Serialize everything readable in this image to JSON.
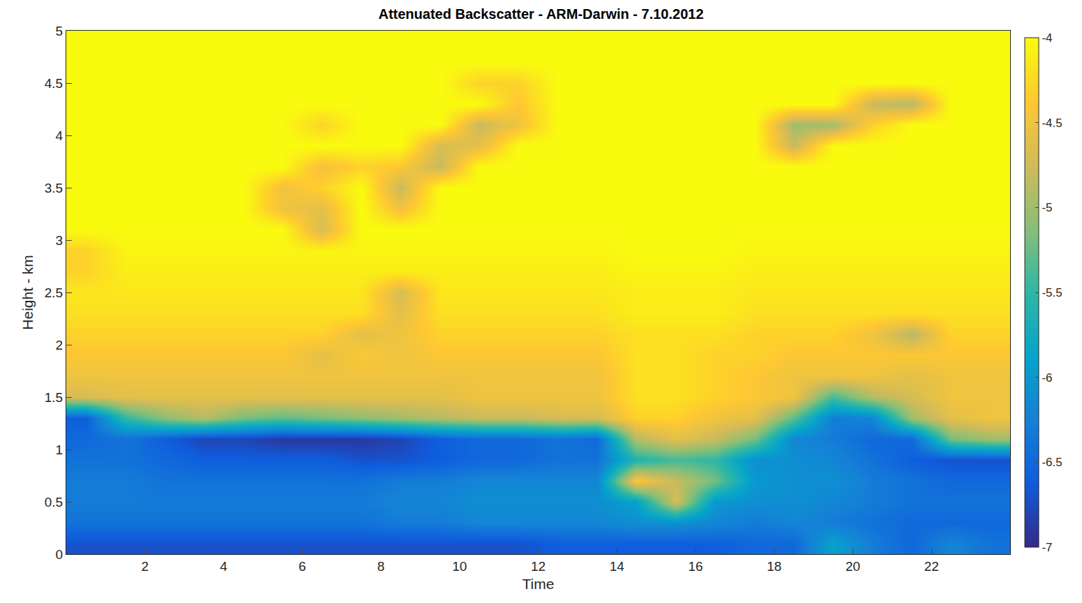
{
  "chart_data": {
    "type": "heatmap",
    "title": "Attenuated Backscatter - ARM-Darwin - 7.10.2012",
    "x_label": "Time",
    "y_label": "Height - km",
    "xlim": [
      0,
      24
    ],
    "xticks": [
      2,
      4,
      6,
      8,
      10,
      12,
      14,
      16,
      18,
      20,
      22
    ],
    "ylim": [
      0,
      5
    ],
    "yticks": [
      0,
      0.5,
      1,
      1.5,
      2,
      2.5,
      3,
      3.5,
      4,
      4.5,
      5
    ],
    "color_range": [
      -7,
      -4
    ],
    "color_ticks": [
      -7,
      -6.5,
      -6,
      -5.5,
      -5,
      -4.5,
      -4
    ],
    "x": [
      0.5,
      1.5,
      2.5,
      3.5,
      4.5,
      5.5,
      6.5,
      7.5,
      8.5,
      9.5,
      10.5,
      11.5,
      12.5,
      13.5,
      14.5,
      15.5,
      16.5,
      17.5,
      18.5,
      19.5,
      20.5,
      21.5,
      22.5,
      23.5
    ],
    "y": [
      0.1,
      0.3,
      0.5,
      0.7,
      0.9,
      1.1,
      1.3,
      1.5,
      1.7,
      1.9,
      2.1,
      2.3,
      2.5,
      2.7,
      2.9,
      3.1,
      3.3,
      3.5,
      3.7,
      3.9,
      4.1,
      4.3,
      4.5,
      4.7,
      4.9
    ],
    "cells": [
      [
        -6.7,
        -6.7,
        -6.7,
        -6.7,
        -6.7,
        -6.7,
        -6.7,
        -6.7,
        -6.7,
        -6.7,
        -6.7,
        -6.7,
        -6.6,
        -6.6,
        -6.6,
        -6.6,
        -6.6,
        -6.5,
        -6.5,
        -5.9,
        -6.3,
        -6.5,
        -6.2,
        -6.4
      ],
      [
        -6.4,
        -6.4,
        -6.4,
        -6.4,
        -6.4,
        -6.4,
        -6.4,
        -6.4,
        -6.3,
        -6.3,
        -6.2,
        -6.2,
        -6.2,
        -6.2,
        -6.1,
        -6.1,
        -6.2,
        -6.3,
        -6.2,
        -6.3,
        -6.4,
        -6.5,
        -6.5,
        -6.5
      ],
      [
        -6.3,
        -6.3,
        -6.3,
        -6.3,
        -6.3,
        -6.3,
        -6.3,
        -6.3,
        -6.2,
        -6.2,
        -6.1,
        -6.1,
        -6.1,
        -6.1,
        -5.9,
        -4.7,
        -6.0,
        -6.1,
        -6.1,
        -6.2,
        -6.3,
        -6.4,
        -6.4,
        -6.4
      ],
      [
        -6.3,
        -6.3,
        -6.4,
        -6.4,
        -6.4,
        -6.4,
        -6.4,
        -6.4,
        -6.3,
        -6.3,
        -6.2,
        -6.2,
        -6.2,
        -6.2,
        -4.4,
        -4.8,
        -5.2,
        -6.0,
        -6.1,
        -6.1,
        -6.3,
        -6.4,
        -6.5,
        -6.5
      ],
      [
        -6.4,
        -6.4,
        -6.5,
        -6.6,
        -6.6,
        -6.6,
        -6.6,
        -6.7,
        -6.7,
        -6.6,
        -6.5,
        -6.5,
        -6.4,
        -6.4,
        -5.6,
        -5.4,
        -5.5,
        -6.1,
        -6.1,
        -6.2,
        -6.4,
        -6.6,
        -6.7,
        -6.7
      ],
      [
        -6.5,
        -6.4,
        -6.6,
        -6.8,
        -6.8,
        -6.9,
        -6.9,
        -6.9,
        -6.8,
        -6.6,
        -6.5,
        -6.5,
        -6.4,
        -6.5,
        -4.9,
        -4.6,
        -4.8,
        -5.2,
        -6.2,
        -6.3,
        -6.5,
        -6.5,
        -5.2,
        -5.0
      ],
      [
        -6.6,
        -5.5,
        -5.1,
        -4.9,
        -5.2,
        -5.3,
        -5.2,
        -5.1,
        -5.0,
        -4.9,
        -4.8,
        -4.8,
        -4.7,
        -4.7,
        -4.3,
        -4.3,
        -4.5,
        -4.6,
        -5.3,
        -6.3,
        -6.2,
        -5.0,
        -4.6,
        -4.5
      ],
      [
        -4.7,
        -4.6,
        -4.6,
        -4.6,
        -4.6,
        -4.6,
        -4.6,
        -4.6,
        -4.6,
        -4.6,
        -4.5,
        -4.5,
        -4.5,
        -4.5,
        -4.2,
        -4.2,
        -4.3,
        -4.4,
        -4.5,
        -5.4,
        -4.9,
        -4.7,
        -4.5,
        -4.5
      ],
      [
        -4.5,
        -4.5,
        -4.5,
        -4.5,
        -4.5,
        -4.5,
        -4.5,
        -4.5,
        -4.5,
        -4.5,
        -4.5,
        -4.5,
        -4.5,
        -4.5,
        -4.2,
        -4.2,
        -4.3,
        -4.4,
        -4.5,
        -4.5,
        -4.5,
        -4.6,
        -4.5,
        -4.5
      ],
      [
        -4.4,
        -4.4,
        -4.4,
        -4.4,
        -4.4,
        -4.4,
        -4.6,
        -4.4,
        -4.5,
        -4.4,
        -4.4,
        -4.4,
        -4.4,
        -4.4,
        -4.2,
        -4.2,
        -4.3,
        -4.3,
        -4.4,
        -4.4,
        -4.4,
        -4.4,
        -4.4,
        -4.4
      ],
      [
        -4.3,
        -4.3,
        -4.3,
        -4.3,
        -4.3,
        -4.3,
        -4.3,
        -4.6,
        -4.5,
        -4.3,
        -4.3,
        -4.3,
        -4.3,
        -4.3,
        -4.2,
        -4.2,
        -4.2,
        -4.3,
        -4.3,
        -4.3,
        -4.5,
        -4.9,
        -4.3,
        -4.3
      ],
      [
        -4.2,
        -4.2,
        -4.2,
        -4.2,
        -4.2,
        -4.2,
        -4.2,
        -4.2,
        -4.6,
        -4.2,
        -4.2,
        -4.2,
        -4.2,
        -4.2,
        -4.1,
        -4.1,
        -4.1,
        -4.2,
        -4.2,
        -4.2,
        -4.2,
        -4.2,
        -4.2,
        -4.2
      ],
      [
        -4.15,
        -4.15,
        -4.15,
        -4.15,
        -4.15,
        -4.15,
        -4.15,
        -4.15,
        -4.7,
        -4.15,
        -4.15,
        -4.15,
        -4.15,
        -4.15,
        -4.1,
        -4.1,
        -4.1,
        -4.15,
        -4.15,
        -4.15,
        -4.15,
        -4.15,
        -4.15,
        -4.15
      ],
      [
        -4.3,
        -4.1,
        -4.1,
        -4.1,
        -4.1,
        -4.1,
        -4.1,
        -4.1,
        -4.1,
        -4.1,
        -4.1,
        -4.1,
        -4.1,
        -4.1,
        -4.05,
        -4.05,
        -4.05,
        -4.1,
        -4.1,
        -4.1,
        -4.1,
        -4.1,
        -4.1,
        -4.1
      ],
      [
        -4.3,
        -4.05,
        -4.05,
        -4.05,
        -4.05,
        -4.05,
        -4.05,
        -4.05,
        -4.05,
        -4.05,
        -4.05,
        -4.05,
        -4.05,
        -4.05,
        -4.0,
        -4.0,
        -4.0,
        -4.05,
        -4.05,
        -4.05,
        -4.05,
        -4.05,
        -4.05,
        -4.05
      ],
      [
        -4.0,
        -4.0,
        -4.0,
        -4.0,
        -4.0,
        -4.0,
        -4.7,
        -4.0,
        -4.0,
        -4.0,
        -4.0,
        -4.0,
        -4.0,
        -4.0,
        -4.0,
        -4.0,
        -4.0,
        -4.0,
        -4.0,
        -4.0,
        -4.0,
        -4.0,
        -4.0,
        -4.0
      ],
      [
        -4.0,
        -4.0,
        -4.0,
        -4.0,
        -4.0,
        -4.5,
        -4.6,
        -4.0,
        -4.5,
        -4.0,
        -4.0,
        -4.0,
        -4.0,
        -4.0,
        -4.0,
        -4.0,
        -4.0,
        -4.0,
        -4.0,
        -4.0,
        -4.0,
        -4.0,
        -4.0,
        -4.0
      ],
      [
        -4.0,
        -4.0,
        -4.0,
        -4.0,
        -4.0,
        -4.5,
        -4.3,
        -4.0,
        -4.8,
        -4.0,
        -4.0,
        -4.0,
        -4.0,
        -4.0,
        -4.0,
        -4.0,
        -4.0,
        -4.0,
        -4.0,
        -4.0,
        -4.0,
        -4.0,
        -4.0,
        -4.0
      ],
      [
        -4.0,
        -4.0,
        -4.0,
        -4.0,
        -4.0,
        -4.0,
        -4.5,
        -4.3,
        -4.4,
        -4.8,
        -4.0,
        -4.0,
        -4.0,
        -4.0,
        -4.0,
        -4.0,
        -4.0,
        -4.0,
        -4.0,
        -4.0,
        -4.0,
        -4.0,
        -4.0,
        -4.0
      ],
      [
        -4.0,
        -4.0,
        -4.0,
        -4.0,
        -4.0,
        -4.0,
        -4.0,
        -4.0,
        -4.0,
        -4.7,
        -4.6,
        -4.0,
        -4.0,
        -4.0,
        -4.0,
        -4.0,
        -4.0,
        -4.0,
        -4.8,
        -4.0,
        -4.0,
        -4.0,
        -4.0,
        -4.0
      ],
      [
        -4.0,
        -4.0,
        -4.0,
        -4.0,
        -4.0,
        -4.0,
        -4.3,
        -4.0,
        -4.0,
        -4.0,
        -4.8,
        -4.5,
        -4.0,
        -4.0,
        -4.0,
        -4.0,
        -4.0,
        -4.0,
        -5.0,
        -5.0,
        -4.3,
        -4.0,
        -4.0,
        -4.0
      ],
      [
        -4.0,
        -4.0,
        -4.0,
        -4.0,
        -4.0,
        -4.0,
        -4.0,
        -4.0,
        -4.0,
        -4.0,
        -4.0,
        -4.4,
        -4.0,
        -4.0,
        -4.0,
        -4.0,
        -4.0,
        -4.0,
        -4.0,
        -4.0,
        -4.8,
        -4.9,
        -4.0,
        -4.0
      ],
      [
        -4.0,
        -4.0,
        -4.0,
        -4.0,
        -4.0,
        -4.0,
        -4.0,
        -4.0,
        -4.0,
        -4.0,
        -4.3,
        -4.3,
        -4.0,
        -4.0,
        -4.0,
        -4.0,
        -4.0,
        -4.0,
        -4.0,
        -4.0,
        -4.0,
        -4.0,
        -4.0,
        -4.0
      ],
      [
        -4.0,
        -4.0,
        -4.0,
        -4.0,
        -4.0,
        -4.0,
        -4.0,
        -4.0,
        -4.0,
        -4.0,
        -4.0,
        -4.0,
        -4.0,
        -4.0,
        -4.0,
        -4.0,
        -4.0,
        -4.0,
        -4.0,
        -4.0,
        -4.0,
        -4.0,
        -4.0,
        -4.0
      ],
      [
        -4.0,
        -4.0,
        -4.0,
        -4.0,
        -4.0,
        -4.0,
        -4.0,
        -4.0,
        -4.0,
        -4.0,
        -4.0,
        -4.0,
        -4.0,
        -4.0,
        -4.0,
        -4.0,
        -4.0,
        -4.0,
        -4.0,
        -4.0,
        -4.0,
        -4.0,
        -4.0,
        -4.0
      ]
    ]
  }
}
